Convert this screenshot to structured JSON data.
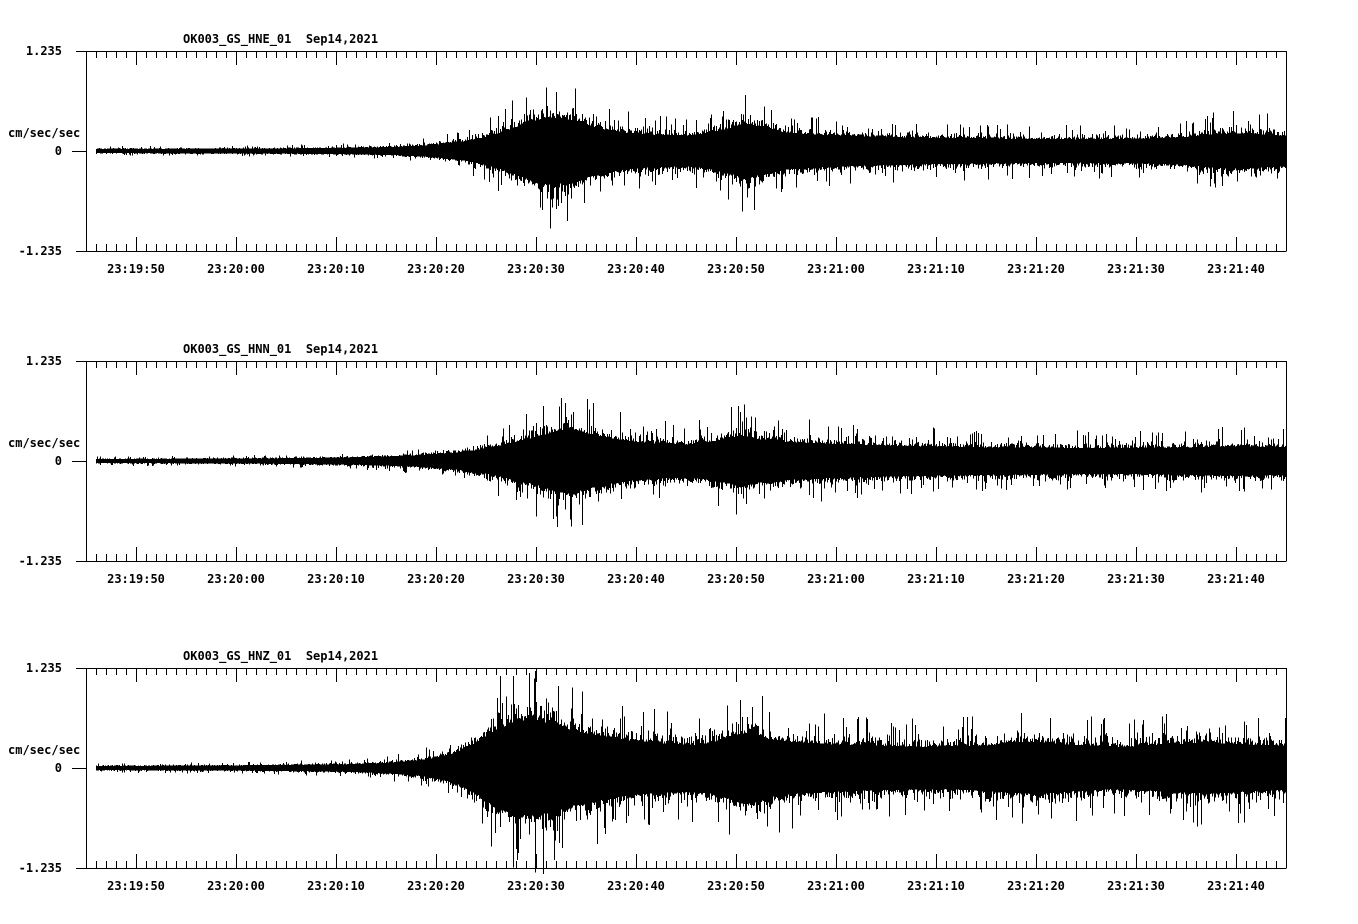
{
  "figure": {
    "background_color": "#ffffff",
    "trace_color": "#000000",
    "axis_color": "#000000"
  },
  "chart_data": {
    "type": "line",
    "kind": "seismogram-3-component",
    "station": "OK003",
    "network": "GS",
    "date": "Sep14,2021",
    "units_label": "cm/sec/sec",
    "ylim": [
      -1.235,
      1.235
    ],
    "y_tick_labels": [
      "1.235",
      "0",
      "-1.235"
    ],
    "time_start": "23:19:45",
    "time_end": "23:21:45",
    "duration_seconds": 120,
    "minor_tick_interval_seconds": 1,
    "major_tick_interval_seconds": 10,
    "grid": false,
    "legend": false,
    "x_tick_labels": [
      "23:19:50",
      "23:20:00",
      "23:20:10",
      "23:20:20",
      "23:20:30",
      "23:20:40",
      "23:20:50",
      "23:21:00",
      "23:21:10",
      "23:21:20",
      "23:21:30",
      "23:21:40"
    ],
    "panels": [
      {
        "title_line": "OK003_GS_HNE_01  Sep14,2021",
        "channel": "HNE",
        "title": "OK003_GS_HNE_01",
        "seed": 19,
        "max_amplitude_up": 1.22,
        "max_amplitude_down": 1.22,
        "envelope_t_amp": [
          [
            0,
            0.055
          ],
          [
            8,
            0.06
          ],
          [
            16,
            0.065
          ],
          [
            22,
            0.075
          ],
          [
            27,
            0.09
          ],
          [
            31,
            0.11
          ],
          [
            34,
            0.15
          ],
          [
            36,
            0.2
          ],
          [
            38,
            0.27
          ],
          [
            40,
            0.38
          ],
          [
            42,
            0.55
          ],
          [
            44,
            0.75
          ],
          [
            46,
            0.92
          ],
          [
            48,
            0.88
          ],
          [
            50,
            0.72
          ],
          [
            52,
            0.58
          ],
          [
            54,
            0.5
          ],
          [
            57,
            0.44
          ],
          [
            60,
            0.42
          ],
          [
            62,
            0.48
          ],
          [
            64,
            0.6
          ],
          [
            66,
            0.74
          ],
          [
            68,
            0.62
          ],
          [
            70,
            0.5
          ],
          [
            73,
            0.44
          ],
          [
            78,
            0.4
          ],
          [
            84,
            0.36
          ],
          [
            92,
            0.33
          ],
          [
            100,
            0.32
          ],
          [
            106,
            0.34
          ],
          [
            110,
            0.38
          ],
          [
            113,
            0.46
          ],
          [
            116,
            0.48
          ],
          [
            118,
            0.44
          ],
          [
            120,
            0.42
          ]
        ]
      },
      {
        "title_line": "OK003_GS_HNN_01  Sep14,2021",
        "channel": "HNN",
        "title": "OK003_GS_HNN_01",
        "seed": 47,
        "max_amplitude_up": 1.22,
        "max_amplitude_down": 1.22,
        "envelope_t_amp": [
          [
            0,
            0.055
          ],
          [
            8,
            0.06
          ],
          [
            16,
            0.07
          ],
          [
            22,
            0.08
          ],
          [
            27,
            0.1
          ],
          [
            31,
            0.13
          ],
          [
            34,
            0.17
          ],
          [
            37,
            0.23
          ],
          [
            39,
            0.3
          ],
          [
            41,
            0.4
          ],
          [
            43,
            0.52
          ],
          [
            45,
            0.65
          ],
          [
            47,
            0.82
          ],
          [
            48.5,
            0.88
          ],
          [
            50,
            0.76
          ],
          [
            52,
            0.64
          ],
          [
            54,
            0.55
          ],
          [
            57,
            0.48
          ],
          [
            60,
            0.45
          ],
          [
            62,
            0.5
          ],
          [
            64,
            0.6
          ],
          [
            65.5,
            0.7
          ],
          [
            67,
            0.6
          ],
          [
            70,
            0.52
          ],
          [
            74,
            0.47
          ],
          [
            80,
            0.42
          ],
          [
            88,
            0.38
          ],
          [
            96,
            0.36
          ],
          [
            104,
            0.35
          ],
          [
            110,
            0.37
          ],
          [
            114,
            0.4
          ],
          [
            120,
            0.38
          ]
        ]
      },
      {
        "title_line": "OK003_GS_HNZ_01  Sep14,2021",
        "channel": "HNZ",
        "title": "OK003_GS_HNZ_01",
        "seed": 83,
        "max_amplitude_up": 1.2,
        "max_amplitude_down": 1.31,
        "envelope_t_amp": [
          [
            0,
            0.055
          ],
          [
            8,
            0.06
          ],
          [
            15,
            0.07
          ],
          [
            21,
            0.085
          ],
          [
            26,
            0.1
          ],
          [
            30,
            0.14
          ],
          [
            33,
            0.2
          ],
          [
            35,
            0.28
          ],
          [
            37,
            0.42
          ],
          [
            39,
            0.7
          ],
          [
            41,
            1.05
          ],
          [
            43,
            1.28
          ],
          [
            45,
            1.3
          ],
          [
            47,
            1.15
          ],
          [
            49,
            1.0
          ],
          [
            51,
            0.9
          ],
          [
            53,
            0.8
          ],
          [
            55,
            0.73
          ],
          [
            58,
            0.67
          ],
          [
            61,
            0.63
          ],
          [
            63,
            0.72
          ],
          [
            65,
            0.92
          ],
          [
            66.5,
            0.98
          ],
          [
            68,
            0.8
          ],
          [
            71,
            0.7
          ],
          [
            75,
            0.64
          ],
          [
            80,
            0.6
          ],
          [
            85,
            0.57
          ],
          [
            90,
            0.62
          ],
          [
            95,
            0.72
          ],
          [
            98,
            0.64
          ],
          [
            103,
            0.57
          ],
          [
            107,
            0.62
          ],
          [
            112,
            0.7
          ],
          [
            116,
            0.64
          ],
          [
            120,
            0.6
          ]
        ]
      }
    ]
  }
}
